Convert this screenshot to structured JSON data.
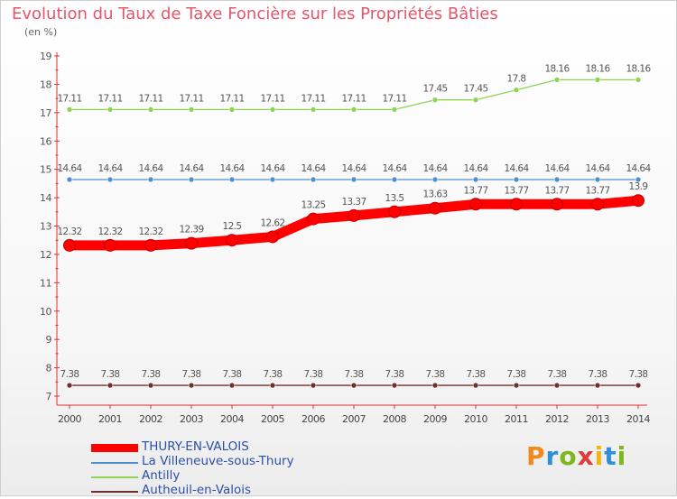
{
  "title": "Evolution du Taux de Taxe Foncière sur les Propriétés Bâties",
  "unit_label": "(en %)",
  "logo": {
    "text": "Proxiti",
    "colors": [
      "#f08a1c",
      "#2e8ed6",
      "#7fb51d",
      "#e03b3b",
      "#f5b40f",
      "#2e8ed6",
      "#7fb51d"
    ]
  },
  "chart_data": {
    "type": "line",
    "title": "Evolution du Taux de Taxe Foncière sur les Propriétés Bâties",
    "ylabel": "(en %)",
    "xlabel": "",
    "x": [
      "2000",
      "2001",
      "2002",
      "2003",
      "2004",
      "2005",
      "2006",
      "2007",
      "2008",
      "2009",
      "2010",
      "2011",
      "2012",
      "2013",
      "2014"
    ],
    "ylim": [
      7,
      19
    ],
    "yticks": [
      "7",
      "8",
      "9",
      "10",
      "11",
      "12",
      "13",
      "14",
      "15",
      "16",
      "17",
      "18",
      "19"
    ],
    "grid": false,
    "legend_position": "bottom-left",
    "series": [
      {
        "name": "THURY-EN-VALOIS",
        "color": "#ff0000",
        "emphasis": true,
        "values": [
          12.32,
          12.32,
          12.32,
          12.39,
          12.5,
          12.62,
          13.25,
          13.37,
          13.5,
          13.63,
          13.77,
          13.77,
          13.77,
          13.77,
          13.9
        ],
        "labels": [
          "12.32",
          "12.32",
          "12.32",
          "12.39",
          "12.5",
          "12.62",
          "13.25",
          "13.37",
          "13.5",
          "13.63",
          "13.77",
          "13.77",
          "13.77",
          "13.77",
          "13.9"
        ]
      },
      {
        "name": "La Villeneuve-sous-Thury",
        "color": "#4f8fcc",
        "emphasis": false,
        "values": [
          14.64,
          14.64,
          14.64,
          14.64,
          14.64,
          14.64,
          14.64,
          14.64,
          14.64,
          14.64,
          14.64,
          14.64,
          14.64,
          14.64,
          14.64
        ],
        "labels": [
          "14.64",
          "14.64",
          "14.64",
          "14.64",
          "14.64",
          "14.64",
          "14.64",
          "14.64",
          "14.64",
          "14.64",
          "14.64",
          "14.64",
          "14.64",
          "14.64",
          "14.64"
        ]
      },
      {
        "name": "Antilly",
        "color": "#8ed454",
        "emphasis": false,
        "values": [
          17.11,
          17.11,
          17.11,
          17.11,
          17.11,
          17.11,
          17.11,
          17.11,
          17.11,
          17.45,
          17.45,
          17.8,
          18.16,
          18.16,
          18.16
        ],
        "labels": [
          "17.11",
          "17.11",
          "17.11",
          "17.11",
          "17.11",
          "17.11",
          "17.11",
          "17.11",
          "17.11",
          "17.45",
          "17.45",
          "17.8",
          "18.16",
          "18.16",
          "18.16"
        ]
      },
      {
        "name": "Autheuil-en-Valois",
        "color": "#6e2f2f",
        "emphasis": false,
        "values": [
          7.38,
          7.38,
          7.38,
          7.38,
          7.38,
          7.38,
          7.38,
          7.38,
          7.38,
          7.38,
          7.38,
          7.38,
          7.38,
          7.38,
          7.38
        ],
        "labels": [
          "7.38",
          "7.38",
          "7.38",
          "7.38",
          "7.38",
          "7.38",
          "7.38",
          "7.38",
          "7.38",
          "7.38",
          "7.38",
          "7.38",
          "7.38",
          "7.38",
          "7.38"
        ]
      }
    ]
  }
}
